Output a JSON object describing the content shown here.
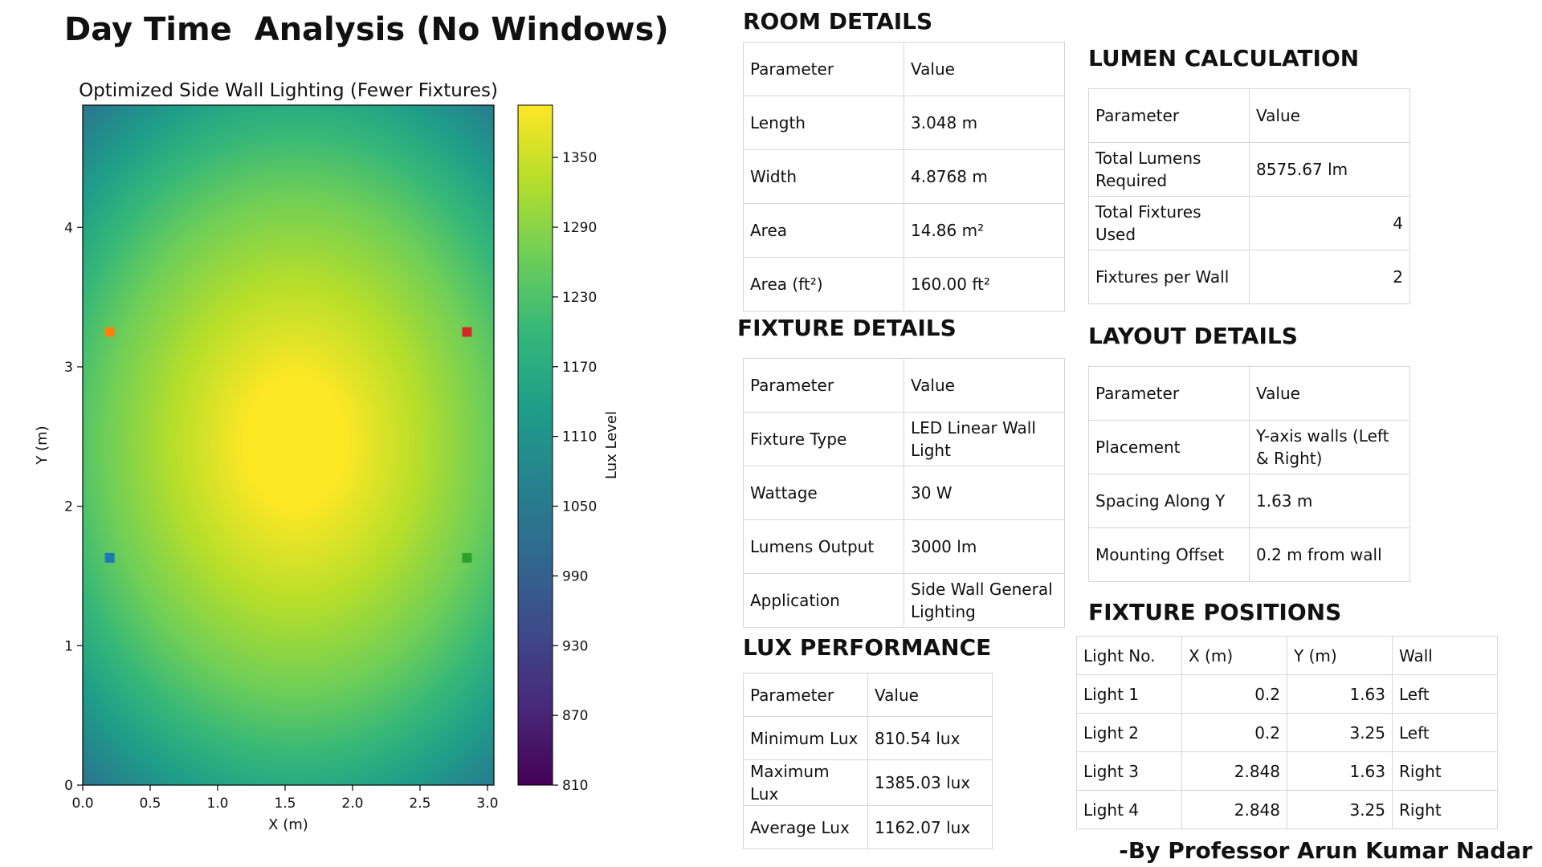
{
  "page": {
    "title": "Day Time  Analysis (No Windows)",
    "byline": "-By Professor Arun Kumar Nadar"
  },
  "chart_data": {
    "type": "heatmap",
    "title": "Optimized Side Wall Lighting (Fewer Fixtures)",
    "xlabel": "X (m)",
    "ylabel": "Y (m)",
    "xlim": [
      0,
      3.048
    ],
    "ylim": [
      0,
      4.8768
    ],
    "x_ticks": [
      "0.0",
      "0.5",
      "1.0",
      "1.5",
      "2.0",
      "2.5",
      "3.0"
    ],
    "y_ticks": [
      "0",
      "1",
      "2",
      "3",
      "4"
    ],
    "colorbar": {
      "label": "Lux Level",
      "range": [
        810,
        1395
      ],
      "ticks": [
        "810",
        "870",
        "930",
        "990",
        "1050",
        "1110",
        "1170",
        "1230",
        "1290",
        "1350"
      ],
      "colormap": "viridis"
    },
    "peak": {
      "x": 1.58,
      "y": 2.45,
      "value": 1385.03
    },
    "min_value": 810.54,
    "fixtures": [
      {
        "x": 0.2,
        "y": 1.63,
        "color": "#1f77b4"
      },
      {
        "x": 0.2,
        "y": 3.25,
        "color": "#ff7f0e"
      },
      {
        "x": 2.848,
        "y": 1.63,
        "color": "#2ca02c"
      },
      {
        "x": 2.848,
        "y": 3.25,
        "color": "#d62728"
      }
    ]
  },
  "room_details": {
    "title": "ROOM DETAILS",
    "header": [
      "Parameter",
      "Value"
    ],
    "rows": [
      [
        "Length",
        "3.048 m"
      ],
      [
        "Width",
        "4.8768 m"
      ],
      [
        "Area",
        "14.86 m²"
      ],
      [
        "Area (ft²)",
        "160.00 ft²"
      ]
    ]
  },
  "fixture_details": {
    "title": "FIXTURE DETAILS",
    "header": [
      "Parameter",
      "Value"
    ],
    "rows": [
      [
        "Fixture Type",
        "LED Linear Wall Light"
      ],
      [
        "Wattage",
        "30 W"
      ],
      [
        "Lumens Output",
        "3000 lm"
      ],
      [
        "Application",
        "Side Wall General Lighting"
      ]
    ]
  },
  "lux_performance": {
    "title": "LUX PERFORMANCE",
    "header": [
      "Parameter",
      "Value"
    ],
    "rows": [
      [
        "Minimum Lux",
        "810.54 lux"
      ],
      [
        "Maximum Lux",
        "1385.03 lux"
      ],
      [
        "Average Lux",
        "1162.07 lux"
      ]
    ]
  },
  "lumen_calculation": {
    "title": "LUMEN CALCULATION",
    "header": [
      "Parameter",
      "Value"
    ],
    "rows": [
      [
        "Total Lumens Required",
        "8575.67 lm"
      ],
      [
        "Total Fixtures Used",
        "4"
      ],
      [
        "Fixtures per Wall",
        "2"
      ]
    ]
  },
  "layout_details": {
    "title": "LAYOUT DETAILS",
    "header": [
      "Parameter",
      "Value"
    ],
    "rows": [
      [
        "Placement",
        "Y-axis walls (Left & Right)"
      ],
      [
        "Spacing Along Y",
        "1.63 m"
      ],
      [
        "Mounting Offset",
        "0.2 m from wall"
      ]
    ]
  },
  "fixture_positions": {
    "title": "FIXTURE POSITIONS",
    "header": [
      "Light No.",
      "X (m)",
      "Y (m)",
      "Wall"
    ],
    "rows": [
      [
        "Light 1",
        "0.2",
        "1.63",
        "Left"
      ],
      [
        "Light 2",
        "0.2",
        "3.25",
        "Left"
      ],
      [
        "Light 3",
        "2.848",
        "1.63",
        "Right"
      ],
      [
        "Light 4",
        "2.848",
        "3.25",
        "Right"
      ]
    ]
  }
}
